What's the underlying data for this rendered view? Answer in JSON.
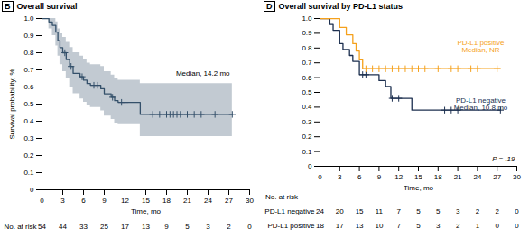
{
  "chart_data": [
    {
      "type": "kaplan-meier",
      "panel": "B",
      "title": "Overall survival",
      "x_label": "Time, mo",
      "y_label": "Survival probability, %",
      "xlim": [
        0,
        30
      ],
      "xticks": [
        0,
        3,
        6,
        9,
        12,
        15,
        18,
        21,
        24,
        27,
        30
      ],
      "ylim": [
        0,
        1
      ],
      "yticks": [
        0,
        0.1,
        0.2,
        0.3,
        0.4,
        0.5,
        0.6,
        0.7,
        0.8,
        0.9,
        {
          "value": 1,
          "label": "1.0"
        }
      ],
      "marker": "plus",
      "annotation": "Median, 14.2 mo",
      "at_risk_label": "No. at risk",
      "at_risk_x": [
        0,
        3,
        6,
        9,
        12,
        15,
        18,
        21,
        24,
        27,
        30
      ],
      "series": [
        {
          "color": "#34506a",
          "x": [
            0,
            1,
            1.5,
            2,
            2.3,
            2.6,
            3,
            3.5,
            4,
            4.5,
            5.5,
            6,
            6.5,
            7,
            8.5,
            9,
            10,
            10.5,
            11,
            14.2,
            27.5
          ],
          "values": [
            1,
            0.98,
            0.96,
            0.92,
            0.87,
            0.83,
            0.8,
            0.76,
            0.72,
            0.68,
            0.66,
            0.64,
            0.62,
            0.61,
            0.59,
            0.56,
            0.54,
            0.52,
            0.51,
            0.44,
            0.44
          ],
          "ci_lower": [
            1,
            0.94,
            0.9,
            0.84,
            0.78,
            0.73,
            0.69,
            0.65,
            0.6,
            0.56,
            0.53,
            0.51,
            0.49,
            0.48,
            0.46,
            0.43,
            0.41,
            0.39,
            0.38,
            0.31,
            0.31
          ],
          "ci_upper": [
            1,
            1,
            1,
            0.98,
            0.94,
            0.91,
            0.89,
            0.86,
            0.83,
            0.8,
            0.78,
            0.76,
            0.74,
            0.73,
            0.72,
            0.69,
            0.67,
            0.65,
            0.64,
            0.62,
            0.62
          ],
          "censored": [
            3.3,
            4.2,
            5.8,
            7.5,
            8,
            10.2,
            11.5,
            12,
            16,
            17,
            18,
            18.5,
            19,
            19.5,
            20,
            21,
            22,
            23,
            25,
            27.5
          ],
          "at_risk": [
            54,
            44,
            33,
            25,
            17,
            13,
            9,
            5,
            3,
            2,
            0
          ]
        }
      ]
    },
    {
      "type": "kaplan-meier",
      "panel": "D",
      "title": "Overall survival by PD-L1 status",
      "x_label": "Time, mo",
      "xlim": [
        0,
        30
      ],
      "xticks": [
        0,
        3,
        6,
        9,
        12,
        15,
        18,
        21,
        24,
        27,
        30
      ],
      "ylim": [
        0,
        1
      ],
      "yticks": [
        0,
        0.1,
        0.2,
        0.3,
        0.4,
        0.5,
        0.6,
        0.7,
        0.8,
        0.9,
        {
          "value": 1,
          "label": "1.0"
        }
      ],
      "marker": "plus",
      "annotation": "P = .19",
      "at_risk_label": "No. at risk",
      "at_risk_x": [
        0,
        3,
        6,
        9,
        12,
        15,
        18,
        21,
        24,
        27,
        30
      ],
      "series": [
        {
          "name": "PD-L1 negative",
          "color": "#1c2f4f",
          "annotation": "Median, 10.8 mo",
          "x": [
            0,
            1.5,
            2,
            3,
            3.5,
            4.5,
            5,
            6,
            9,
            10,
            10.8,
            14,
            27.5
          ],
          "values": [
            1,
            0.96,
            0.92,
            0.83,
            0.79,
            0.75,
            0.71,
            0.62,
            0.58,
            0.54,
            0.46,
            0.38,
            0.38
          ],
          "censored": [
            6.5,
            7,
            11,
            12,
            19,
            20,
            21,
            27.5
          ],
          "at_risk": [
            24,
            20,
            15,
            11,
            7,
            5,
            5,
            3,
            2,
            2,
            0
          ]
        },
        {
          "name": "PD-L1 positive",
          "color": "#f5a11c",
          "annotation": "Median, NR",
          "x": [
            0,
            3,
            4,
            5,
            5.5,
            6,
            6.5,
            27.5
          ],
          "values": [
            1,
            0.94,
            0.89,
            0.83,
            0.78,
            0.72,
            0.66,
            0.66
          ],
          "censored": [
            7,
            8,
            9,
            10,
            11,
            12,
            13,
            14,
            15,
            16,
            18,
            20,
            21,
            23,
            24,
            27
          ],
          "at_risk": [
            18,
            17,
            13,
            10,
            7,
            5,
            3,
            2,
            1,
            0,
            0
          ]
        }
      ]
    }
  ]
}
